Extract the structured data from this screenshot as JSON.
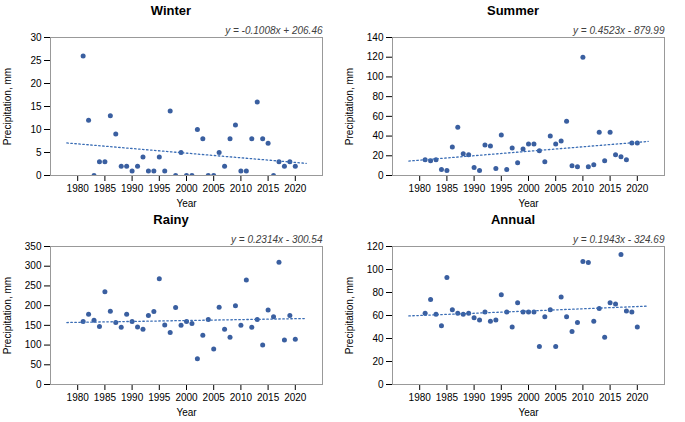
{
  "chart_data": [
    {
      "type": "scatter",
      "title": "Winter",
      "xlabel": "Year",
      "ylabel": "Precipitation, mm",
      "xlim": [
        1975,
        2025
      ],
      "xticks": [
        1980,
        1985,
        1990,
        1995,
        2000,
        2005,
        2010,
        2015,
        2020
      ],
      "ylim": [
        0,
        30
      ],
      "yticks": [
        0,
        5,
        10,
        15,
        20,
        25,
        30
      ],
      "annotations": [
        "y = -0.1008x + 206.46"
      ],
      "series": [
        {
          "type": "scatter",
          "color": "#3a5fa0",
          "x": [
            1981,
            1982,
            1983,
            1984,
            1985,
            1986,
            1987,
            1988,
            1989,
            1990,
            1991,
            1992,
            1993,
            1994,
            1995,
            1996,
            1997,
            1998,
            1999,
            2000,
            2001,
            2002,
            2003,
            2004,
            2005,
            2006,
            2007,
            2008,
            2009,
            2010,
            2011,
            2012,
            2013,
            2014,
            2015,
            2016,
            2017,
            2018,
            2019,
            2020
          ],
          "values": [
            26,
            12,
            0,
            3,
            3,
            13,
            9,
            2,
            2,
            1,
            2,
            4,
            1,
            1,
            4,
            1,
            14,
            0,
            5,
            0,
            0,
            10,
            8,
            0,
            0,
            5,
            2,
            8,
            11,
            1,
            1,
            8,
            16,
            8,
            7,
            0,
            3,
            2,
            3,
            2
          ]
        },
        {
          "type": "line",
          "color": "#3a6db5",
          "line_style": "dotted",
          "x": [
            1978,
            2022
          ],
          "values": [
            7.0776,
            2.6424
          ]
        }
      ]
    },
    {
      "type": "scatter",
      "title": "Summer",
      "xlabel": "Year",
      "ylabel": "Precipitation, mm",
      "xlim": [
        1975,
        2025
      ],
      "xticks": [
        1980,
        1985,
        1990,
        1995,
        2000,
        2005,
        2010,
        2015,
        2020
      ],
      "ylim": [
        0,
        140
      ],
      "yticks": [
        0,
        20,
        40,
        60,
        80,
        100,
        120,
        140
      ],
      "annotations": [
        "y = 0.4523x - 879.99"
      ],
      "series": [
        {
          "type": "scatter",
          "color": "#3a5fa0",
          "x": [
            1981,
            1982,
            1983,
            1984,
            1985,
            1986,
            1987,
            1988,
            1989,
            1990,
            1991,
            1992,
            1993,
            1994,
            1995,
            1996,
            1997,
            1998,
            1999,
            2000,
            2001,
            2002,
            2003,
            2004,
            2005,
            2006,
            2007,
            2008,
            2009,
            2010,
            2011,
            2012,
            2013,
            2014,
            2015,
            2016,
            2017,
            2018,
            2019,
            2020
          ],
          "values": [
            16,
            15,
            16,
            6,
            5,
            29,
            49,
            22,
            21,
            8,
            5,
            31,
            30,
            7,
            41,
            6,
            28,
            13,
            27,
            32,
            32,
            25,
            14,
            40,
            32,
            35,
            55,
            10,
            9,
            120,
            9,
            11,
            44,
            15,
            44,
            21,
            19,
            16,
            33,
            33
          ]
        },
        {
          "type": "line",
          "color": "#3a6db5",
          "line_style": "dotted",
          "x": [
            1978,
            2022
          ],
          "values": [
            14.6594,
            34.5606
          ]
        }
      ]
    },
    {
      "type": "scatter",
      "title": "Rainy",
      "xlabel": "Year",
      "ylabel": "Precipitation, mm",
      "xlim": [
        1975,
        2025
      ],
      "xticks": [
        1980,
        1985,
        1990,
        1995,
        2000,
        2005,
        2010,
        2015,
        2020
      ],
      "ylim": [
        0,
        350
      ],
      "yticks": [
        0,
        50,
        100,
        150,
        200,
        250,
        300,
        350
      ],
      "annotations": [
        "y = 0.2314x - 300.54"
      ],
      "series": [
        {
          "type": "scatter",
          "color": "#3a5fa0",
          "x": [
            1981,
            1982,
            1983,
            1984,
            1985,
            1986,
            1987,
            1988,
            1989,
            1990,
            1991,
            1992,
            1993,
            1994,
            1995,
            1996,
            1997,
            1998,
            1999,
            2000,
            2001,
            2002,
            2003,
            2004,
            2005,
            2006,
            2007,
            2008,
            2009,
            2010,
            2011,
            2012,
            2013,
            2014,
            2015,
            2016,
            2017,
            2018,
            2019,
            2020
          ],
          "values": [
            160,
            178,
            163,
            147,
            235,
            186,
            157,
            145,
            178,
            160,
            146,
            140,
            175,
            185,
            268,
            151,
            132,
            195,
            150,
            160,
            155,
            65,
            125,
            165,
            90,
            196,
            140,
            120,
            200,
            150,
            265,
            145,
            165,
            100,
            189,
            172,
            310,
            113,
            175,
            115
          ]
        },
        {
          "type": "line",
          "color": "#3a6db5",
          "line_style": "dotted",
          "x": [
            1978,
            2022
          ],
          "values": [
            157.1692,
            167.3508
          ]
        }
      ]
    },
    {
      "type": "scatter",
      "title": "Annual",
      "xlabel": "Year",
      "ylabel": "Precipitation, mm",
      "xlim": [
        1975,
        2025
      ],
      "xticks": [
        1980,
        1985,
        1990,
        1995,
        2000,
        2005,
        2010,
        2015,
        2020
      ],
      "ylim": [
        0,
        120
      ],
      "yticks": [
        0,
        20,
        40,
        60,
        80,
        100,
        120
      ],
      "annotations": [
        "y = 0.1943x - 324.69"
      ],
      "series": [
        {
          "type": "scatter",
          "color": "#3a5fa0",
          "x": [
            1981,
            1982,
            1983,
            1984,
            1985,
            1986,
            1987,
            1988,
            1989,
            1990,
            1991,
            1992,
            1993,
            1994,
            1995,
            1996,
            1997,
            1998,
            1999,
            2000,
            2001,
            2002,
            2003,
            2004,
            2005,
            2006,
            2007,
            2008,
            2009,
            2010,
            2011,
            2012,
            2013,
            2014,
            2015,
            2016,
            2017,
            2018,
            2019,
            2020
          ],
          "values": [
            62,
            74,
            61,
            51,
            93,
            65,
            62,
            61,
            62,
            58,
            56,
            63,
            55,
            56,
            78,
            63,
            50,
            71,
            63,
            63,
            63,
            33,
            59,
            65,
            33,
            76,
            59,
            46,
            54,
            107,
            106,
            55,
            66,
            41,
            71,
            70,
            113,
            64,
            63,
            50
          ]
        },
        {
          "type": "line",
          "color": "#3a6db5",
          "line_style": "dotted",
          "x": [
            1978,
            2022
          ],
          "values": [
            59.6354,
            68.1846
          ]
        }
      ]
    }
  ]
}
